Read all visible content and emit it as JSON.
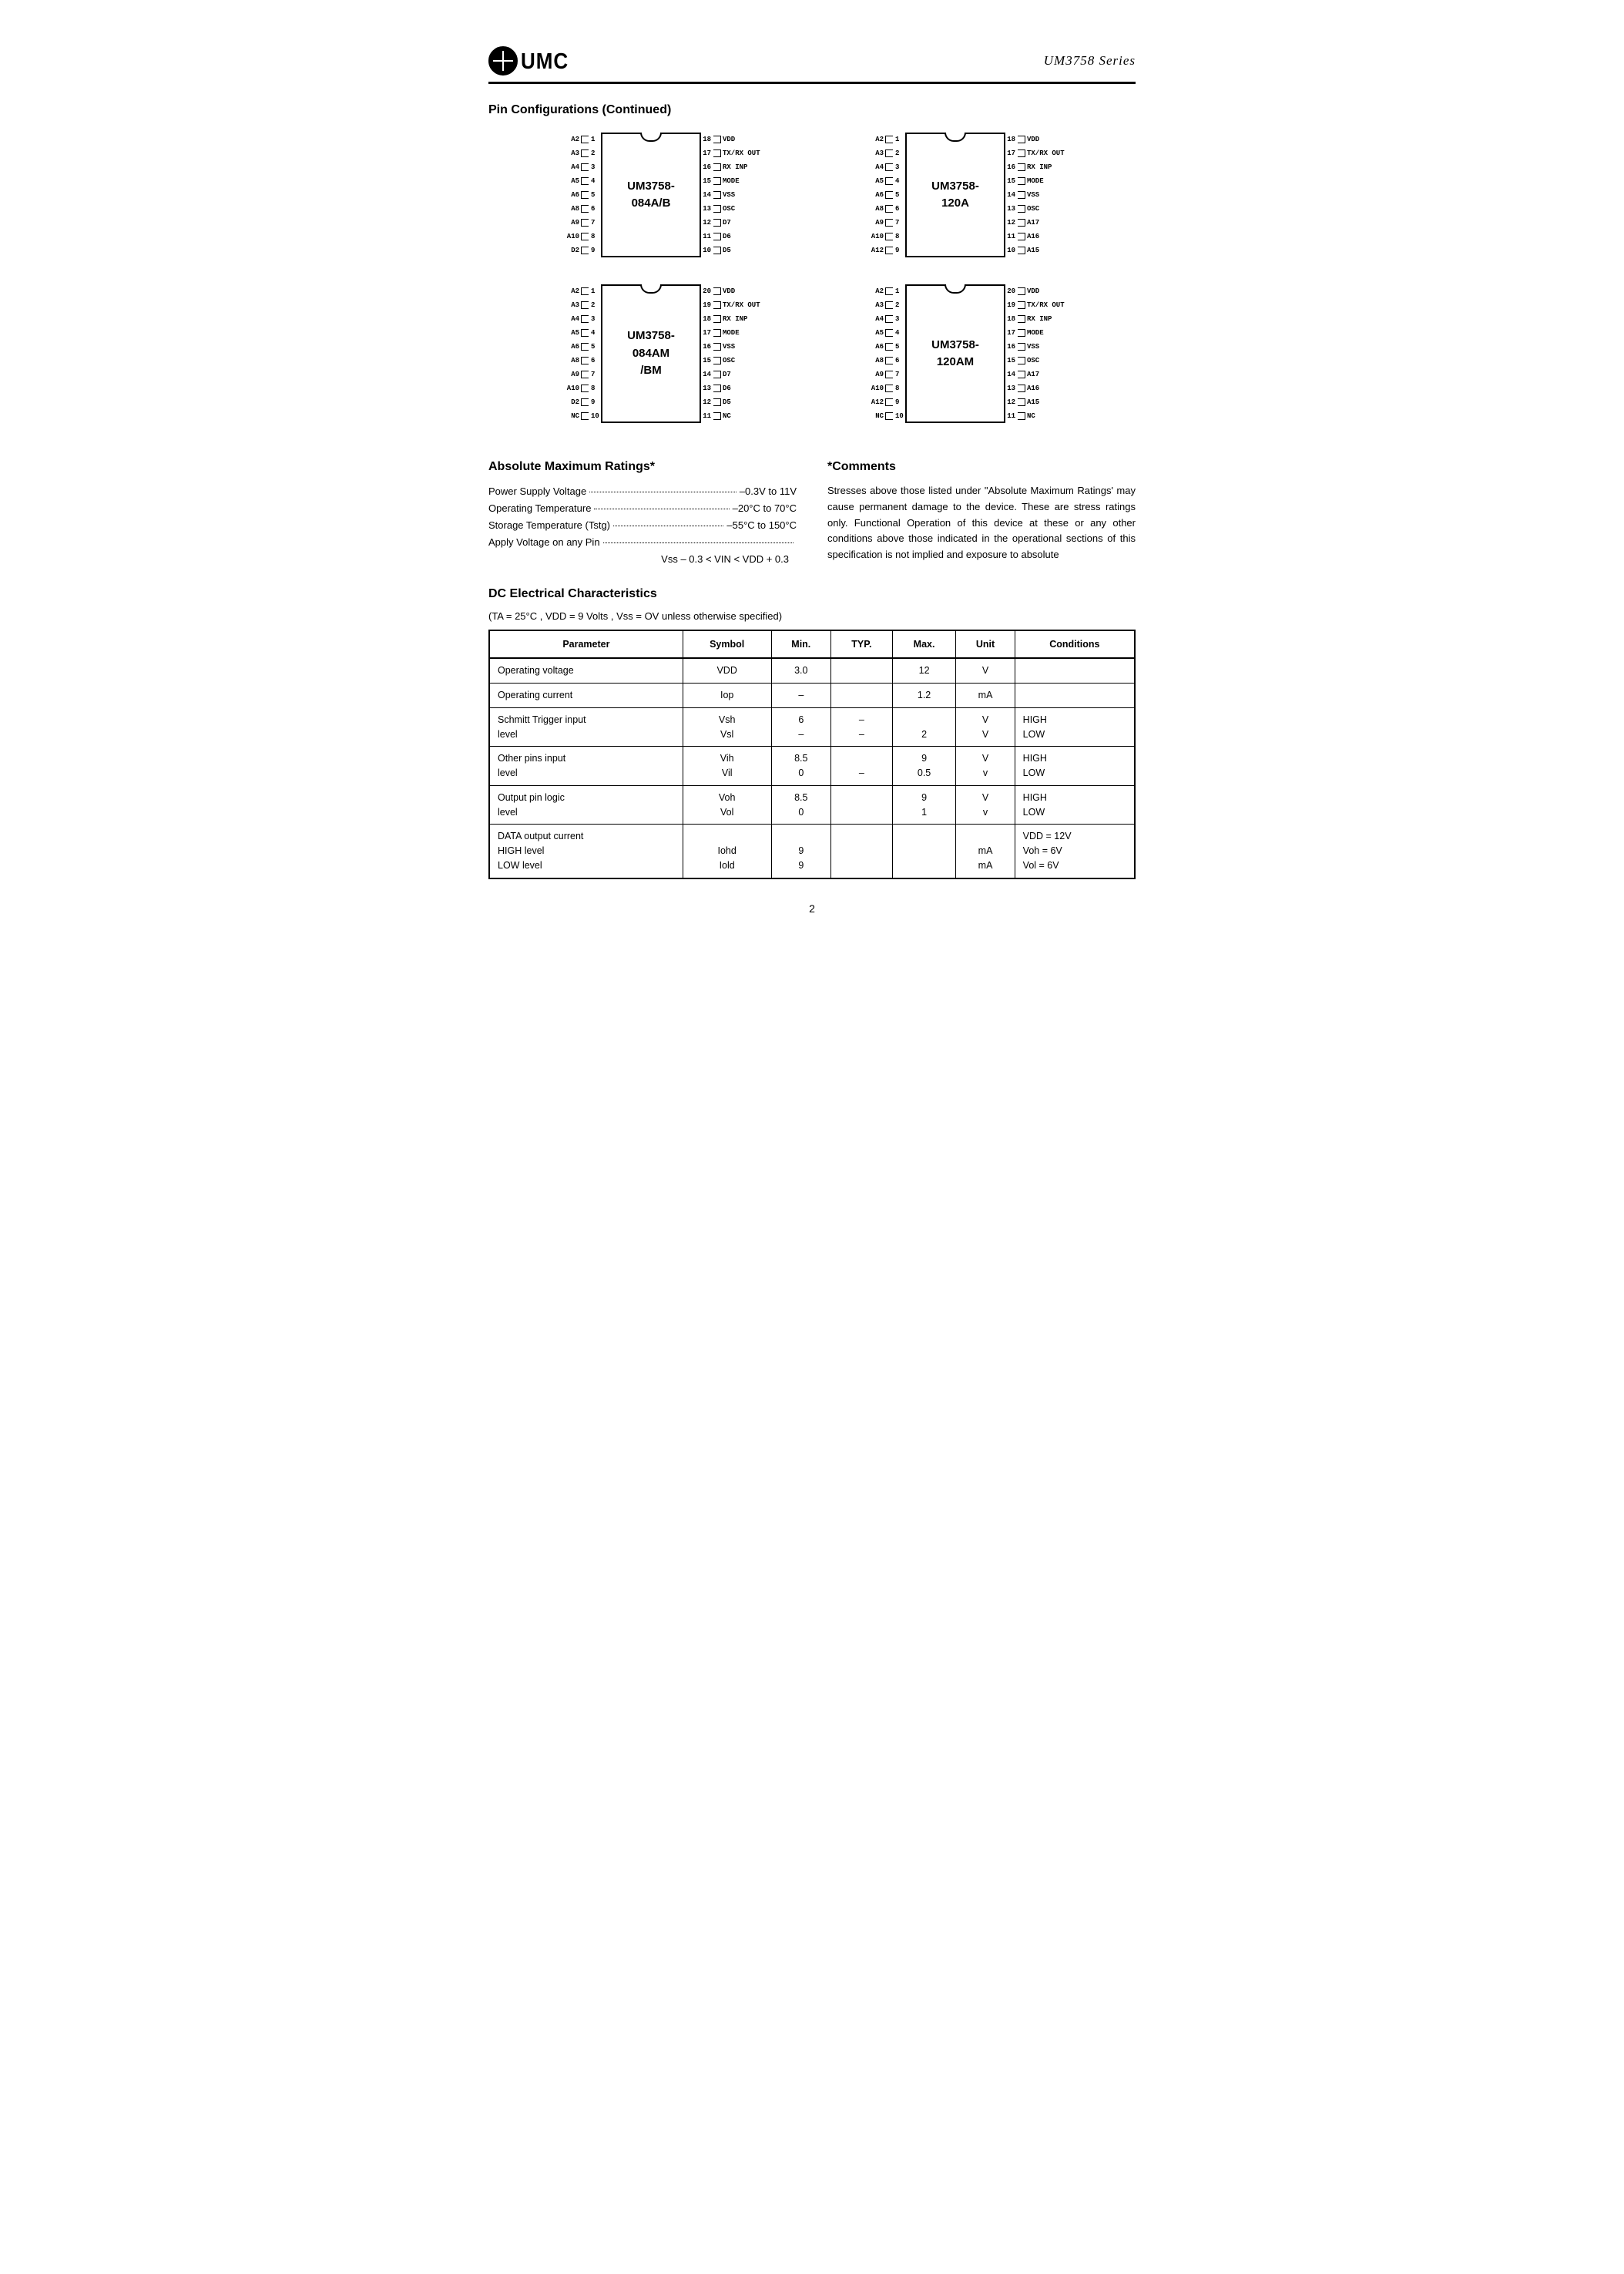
{
  "header": {
    "logo_text": "UMC",
    "series": "UM3758 Series"
  },
  "section1_title": "Pin Configurations (Continued)",
  "chips": [
    {
      "label": "UM3758-\n084A/B",
      "pins": 18,
      "body_height": 162,
      "left": [
        "A2",
        "A3",
        "A4",
        "A5",
        "A6",
        "A8",
        "A9",
        "A10",
        "D2"
      ],
      "right": [
        "VDD",
        "TX/RX OUT",
        "RX INP",
        "MODE",
        "VSS",
        "OSC",
        "D7",
        "D6",
        "D5"
      ]
    },
    {
      "label": "UM3758-\n120A",
      "pins": 18,
      "body_height": 162,
      "left": [
        "A2",
        "A3",
        "A4",
        "A5",
        "A6",
        "A8",
        "A9",
        "A10",
        "A12"
      ],
      "right": [
        "VDD",
        "TX/RX OUT",
        "RX INP",
        "MODE",
        "VSS",
        "OSC",
        "A17",
        "A16",
        "A15"
      ]
    },
    {
      "label": "UM3758-\n084AM\n/BM",
      "pins": 20,
      "body_height": 180,
      "left": [
        "A2",
        "A3",
        "A4",
        "A5",
        "A6",
        "A8",
        "A9",
        "A10",
        "D2",
        "NC"
      ],
      "right": [
        "VDD",
        "TX/RX OUT",
        "RX INP",
        "MODE",
        "VSS",
        "OSC",
        "D7",
        "D6",
        "D5",
        "NC"
      ]
    },
    {
      "label": "UM3758-\n120AM",
      "pins": 20,
      "body_height": 180,
      "left": [
        "A2",
        "A3",
        "A4",
        "A5",
        "A6",
        "A8",
        "A9",
        "A10",
        "A12",
        "NC"
      ],
      "right": [
        "VDD",
        "TX/RX OUT",
        "RX INP",
        "MODE",
        "VSS",
        "OSC",
        "A17",
        "A16",
        "A15",
        "NC"
      ]
    }
  ],
  "ratings": {
    "title": "Absolute Maximum Ratings*",
    "rows": [
      {
        "label": "Power Supply Voltage",
        "value": "–0.3V to 11V"
      },
      {
        "label": "Operating Temperature",
        "value": "–20°C to 70°C"
      },
      {
        "label": "Storage Temperature (Tstg)",
        "value": "–55°C to 150°C"
      },
      {
        "label": "Apply Voltage on any Pin",
        "value": ""
      }
    ],
    "last_line": "Vss – 0.3 < VIN < VDD + 0.3"
  },
  "comments": {
    "title": "*Comments",
    "text": "Stresses above those listed under \"Absolute Maximum Ratings' may cause permanent damage to the device. These are stress ratings only. Functional Operation of this device at these or any other conditions above those indicated in the operational sections of this specification is not implied and exposure to absolute"
  },
  "dc": {
    "title": "DC Electrical Characteristics",
    "cond": "(TA = 25°C , VDD = 9 Volts , Vss = OV unless otherwise specified)",
    "headers": [
      "Parameter",
      "Symbol",
      "Min.",
      "TYP.",
      "Max.",
      "Unit",
      "Conditions"
    ],
    "rows": [
      {
        "param": "Operating voltage",
        "sym": "VDD",
        "min": "3.0",
        "typ": "",
        "max": "12",
        "unit": "V",
        "cond": ""
      },
      {
        "param": "Operating current",
        "sym": "Iop",
        "min": "–",
        "typ": "",
        "max": "1.2",
        "unit": "mA",
        "cond": ""
      },
      {
        "param": "Schmitt Trigger input\nlevel",
        "sym": "Vsh\nVsl",
        "min": "6\n–",
        "typ": "–\n–",
        "max": "\n2",
        "unit": "V\nV",
        "cond": "HIGH\nLOW"
      },
      {
        "param": "Other pins input\nlevel",
        "sym": "Vih\nVil",
        "min": "8.5\n0",
        "typ": "\n–",
        "max": "9\n0.5",
        "unit": "V\nv",
        "cond": "HIGH\nLOW"
      },
      {
        "param": "Output pin logic\nlevel",
        "sym": "Voh\nVol",
        "min": "8.5\n0",
        "typ": "",
        "max": "9\n1",
        "unit": "V\nv",
        "cond": "HIGH\nLOW"
      },
      {
        "param": "DATA output current\nHIGH level\nLOW level",
        "sym": "\nIohd\nIold",
        "min": "\n9\n9",
        "typ": "",
        "max": "",
        "unit": "\nmA\nmA",
        "cond": "VDD = 12V\nVoh = 6V\nVol = 6V"
      }
    ]
  },
  "page_number": "2",
  "colors": {
    "text": "#000000",
    "bg": "#ffffff",
    "border": "#000000"
  }
}
